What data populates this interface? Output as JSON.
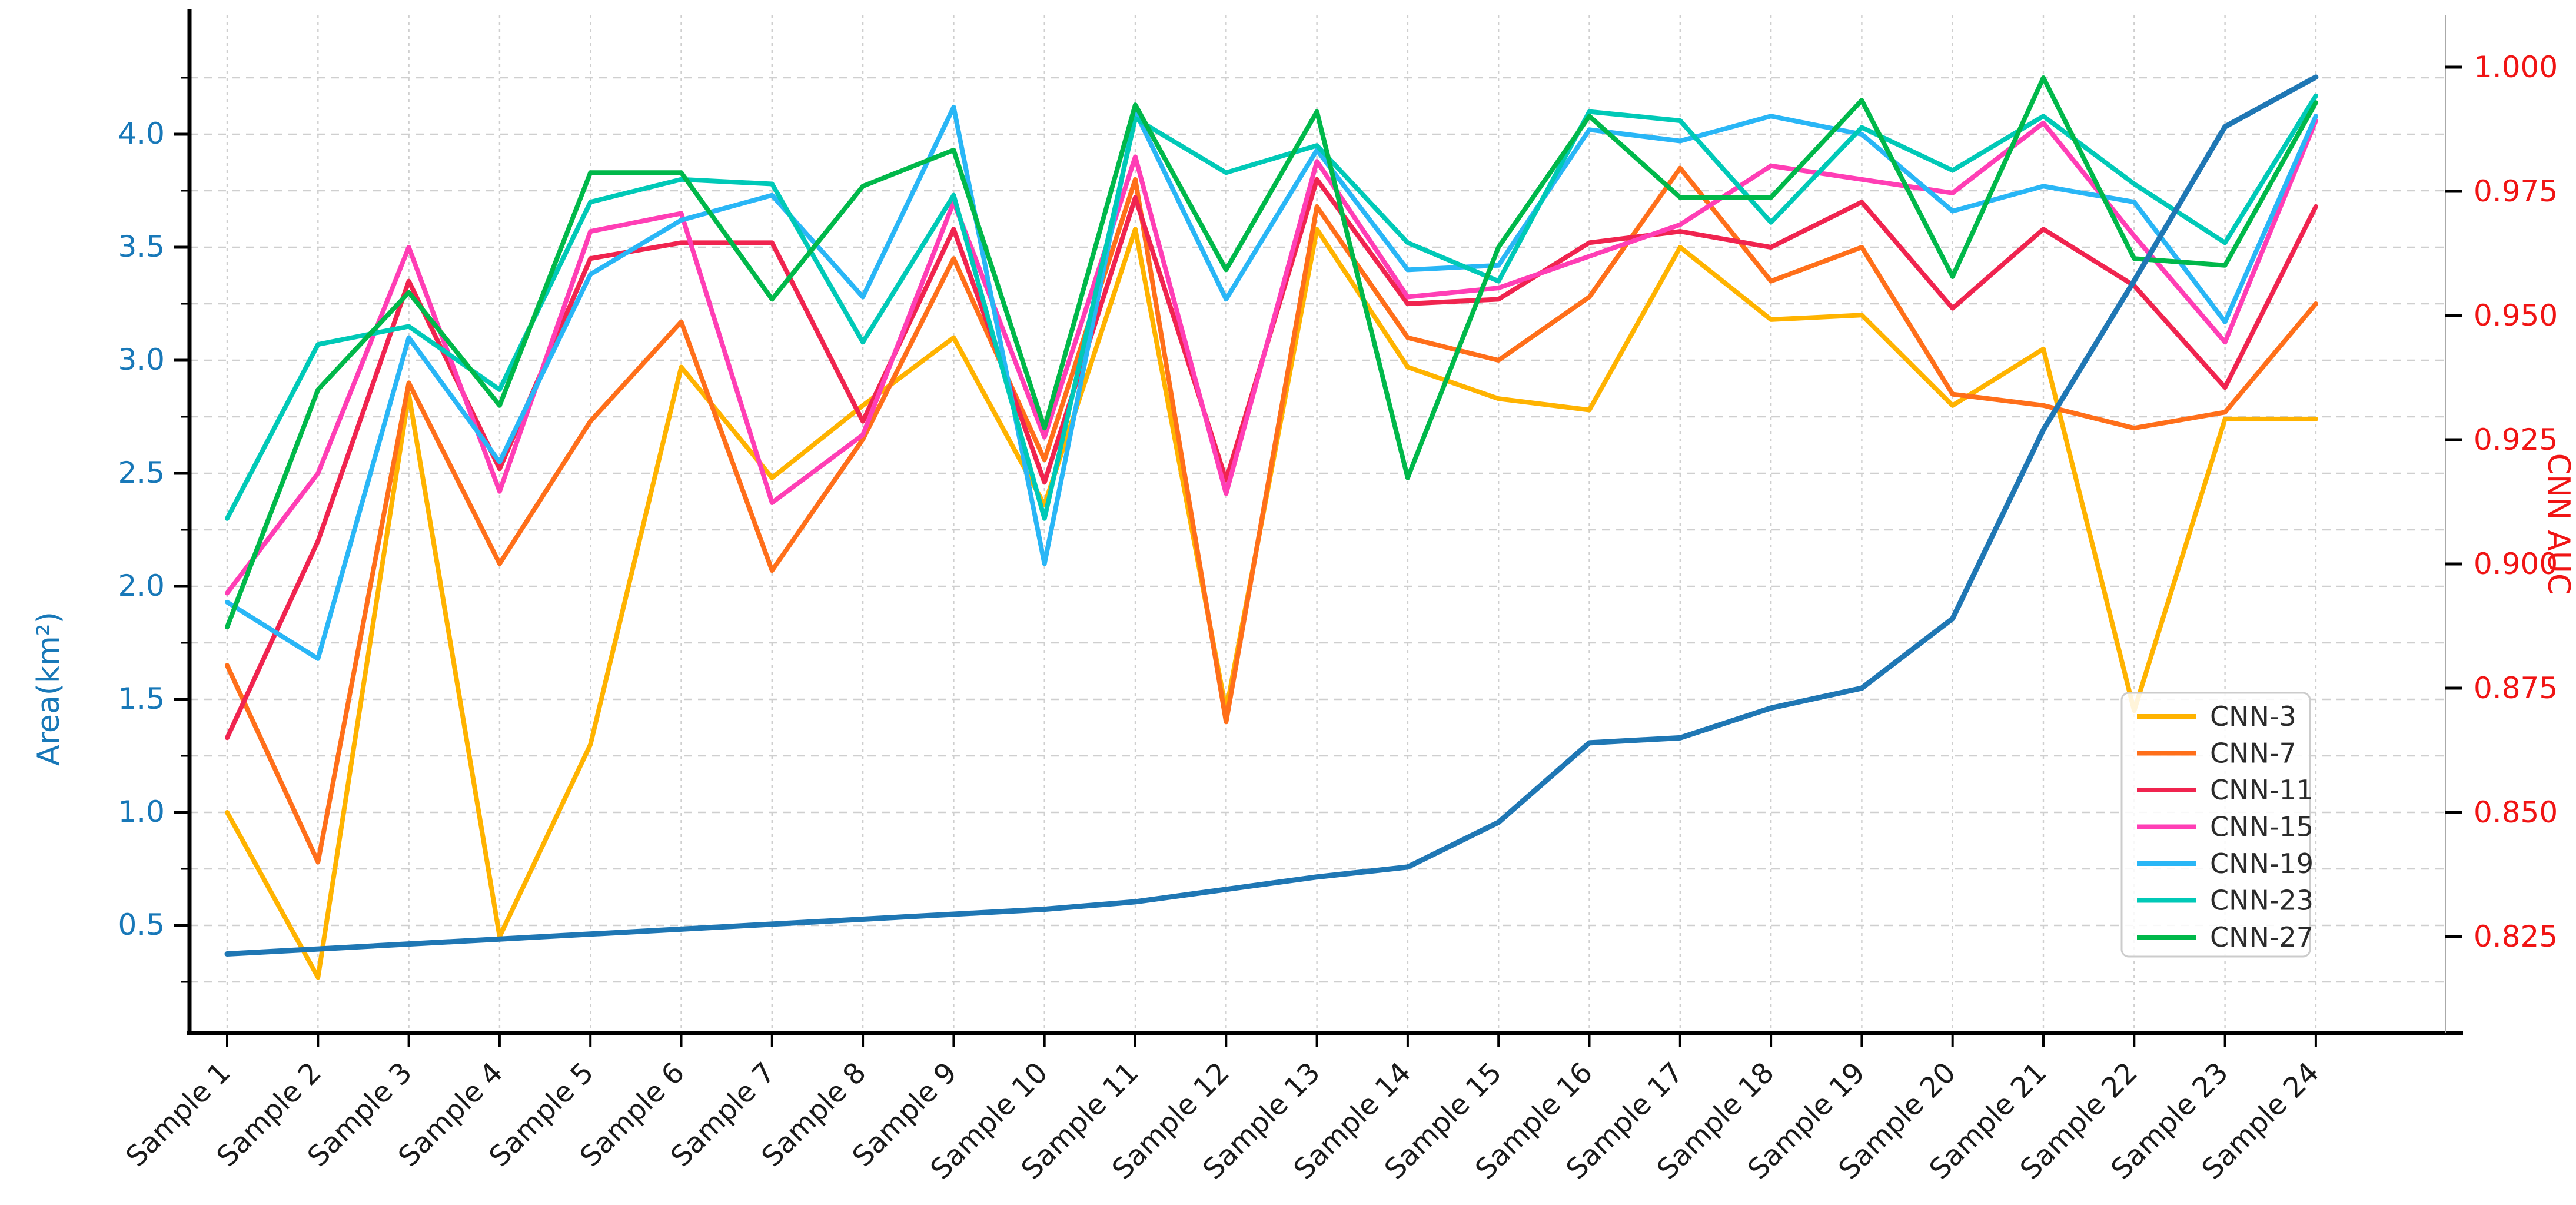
{
  "chart_data": {
    "type": "line",
    "title": "",
    "x_categories": [
      "Sample 1",
      "Sample 2",
      "Sample 3",
      "Sample 4",
      "Sample 5",
      "Sample 6",
      "Sample 7",
      "Sample 8",
      "Sample 9",
      "Sample 10",
      "Sample 11",
      "Sample 12",
      "Sample 13",
      "Sample 14",
      "Sample 15",
      "Sample 16",
      "Sample 17",
      "Sample 18",
      "Sample 19",
      "Sample 20",
      "Sample 21",
      "Sample 22",
      "Sample 23",
      "Sample 24"
    ],
    "left_axis": {
      "label": "Area(km²)",
      "color": "#1878b8",
      "tick_values": [
        0.5,
        1.0,
        1.5,
        2.0,
        2.5,
        3.0,
        3.5,
        4.0
      ],
      "range": [
        0.02,
        4.52
      ],
      "minor_grid_step": 0.25
    },
    "right_axis": {
      "label": "CNN AUC",
      "color": "#f01414",
      "tick_values": [
        0.825,
        0.85,
        0.875,
        0.9,
        0.925,
        0.95,
        0.975,
        1.0
      ],
      "range": [
        0.8056,
        1.0102
      ]
    },
    "grid": true,
    "legend_position": "lower-right",
    "series": [
      {
        "name": "CNN-3",
        "color": "#FFB300",
        "axis": "left",
        "in_legend": true,
        "values": [
          1.0,
          0.27,
          2.85,
          0.45,
          1.3,
          2.97,
          2.48,
          2.8,
          3.1,
          2.36,
          3.58,
          1.45,
          3.58,
          2.97,
          2.83,
          2.78,
          3.5,
          3.18,
          3.2,
          2.8,
          3.05,
          1.45,
          2.74,
          2.74
        ]
      },
      {
        "name": "CNN-7",
        "color": "#FF6F1A",
        "axis": "left",
        "in_legend": true,
        "values": [
          1.65,
          0.78,
          2.9,
          2.1,
          2.73,
          3.17,
          2.07,
          2.65,
          3.45,
          2.56,
          3.8,
          1.4,
          3.68,
          3.1,
          3.0,
          3.28,
          3.85,
          3.35,
          3.5,
          2.85,
          2.8,
          2.7,
          2.77,
          3.25
        ]
      },
      {
        "name": "CNN-11",
        "color": "#F0244F",
        "axis": "left",
        "in_legend": true,
        "values": [
          1.33,
          2.2,
          3.35,
          2.52,
          3.45,
          3.52,
          3.52,
          2.73,
          3.58,
          2.46,
          3.72,
          2.47,
          3.8,
          3.25,
          3.27,
          3.52,
          3.57,
          3.5,
          3.7,
          3.23,
          3.58,
          3.33,
          2.88,
          3.68
        ]
      },
      {
        "name": "CNN-15",
        "color": "#FF3EB5",
        "axis": "left",
        "in_legend": true,
        "values": [
          1.97,
          2.5,
          3.5,
          2.42,
          3.57,
          3.65,
          2.37,
          2.67,
          3.7,
          2.66,
          3.9,
          2.41,
          3.88,
          3.28,
          3.32,
          3.46,
          3.6,
          3.86,
          3.8,
          3.74,
          4.05,
          3.55,
          3.08,
          4.06
        ]
      },
      {
        "name": "CNN-19",
        "color": "#29B6F6",
        "axis": "left",
        "in_legend": true,
        "values": [
          1.93,
          1.68,
          3.1,
          2.55,
          3.38,
          3.62,
          3.73,
          3.28,
          4.12,
          2.1,
          4.1,
          3.27,
          3.93,
          3.4,
          3.42,
          4.02,
          3.97,
          4.08,
          4.0,
          3.66,
          3.77,
          3.7,
          3.17,
          4.08
        ]
      },
      {
        "name": "CNN-23",
        "color": "#00C9B7",
        "axis": "left",
        "in_legend": true,
        "values": [
          2.3,
          3.07,
          3.15,
          2.87,
          3.7,
          3.8,
          3.78,
          3.08,
          3.73,
          2.3,
          4.07,
          3.83,
          3.95,
          3.52,
          3.35,
          4.1,
          4.06,
          3.61,
          4.03,
          3.84,
          4.08,
          3.78,
          3.52,
          4.17
        ]
      },
      {
        "name": "CNN-27",
        "color": "#00B84A",
        "axis": "left",
        "in_legend": true,
        "values": [
          1.82,
          2.87,
          3.3,
          2.8,
          3.83,
          3.83,
          3.27,
          3.77,
          3.93,
          2.7,
          4.13,
          3.4,
          4.1,
          2.48,
          3.5,
          4.08,
          3.72,
          3.72,
          4.15,
          3.37,
          4.25,
          3.45,
          3.42,
          4.14
        ]
      },
      {
        "name": "CNN-AUC",
        "color": "#1f77b4",
        "axis": "right",
        "in_legend": false,
        "values": [
          0.8215,
          0.8225,
          0.8235,
          0.8245,
          0.8255,
          0.8265,
          0.8275,
          0.8285,
          0.8295,
          0.8305,
          0.832,
          0.8345,
          0.837,
          0.839,
          0.848,
          0.864,
          0.865,
          0.871,
          0.875,
          0.889,
          0.927,
          0.957,
          0.988,
          0.998
        ]
      }
    ]
  }
}
